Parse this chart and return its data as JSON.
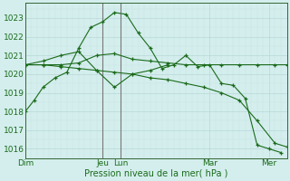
{
  "xlabel": "Pression niveau de la mer( hPa )",
  "bg_color": "#d4eeed",
  "grid_major_color": "#b8d8d8",
  "grid_minor_color": "#c8e4e4",
  "line_color": "#1a6b1a",
  "vline_color": "#777777",
  "ylim": [
    1015.5,
    1023.8
  ],
  "yticks": [
    1016,
    1017,
    1018,
    1019,
    1020,
    1021,
    1022,
    1023
  ],
  "xlim": [
    0,
    44
  ],
  "xtick_positions": [
    0,
    13,
    16,
    31,
    41
  ],
  "xtick_labels": [
    "Dim",
    "Jeu",
    "Lun",
    "Mar",
    "Mer"
  ],
  "vlines": [
    13,
    16
  ],
  "series1_x": [
    0,
    1.5,
    3,
    5,
    7,
    9,
    11,
    13,
    15,
    17,
    19,
    21,
    23,
    25,
    27,
    29,
    31,
    33,
    35,
    37,
    39,
    41,
    43
  ],
  "series1_y": [
    1018.0,
    1018.6,
    1019.3,
    1019.8,
    1020.1,
    1021.4,
    1022.5,
    1022.8,
    1023.3,
    1023.2,
    1022.2,
    1021.4,
    1020.3,
    1020.5,
    1021.0,
    1020.4,
    1020.5,
    1019.5,
    1019.4,
    1018.7,
    1016.2,
    1016.0,
    1015.8
  ],
  "series2_x": [
    0,
    3,
    6,
    9,
    12,
    15,
    18,
    21,
    24,
    27,
    30,
    33,
    36,
    39,
    42,
    44
  ],
  "series2_y": [
    1020.5,
    1020.5,
    1020.5,
    1020.6,
    1021.0,
    1021.1,
    1020.8,
    1020.7,
    1020.6,
    1020.5,
    1020.5,
    1020.5,
    1020.5,
    1020.5,
    1020.5,
    1020.5
  ],
  "series3_x": [
    0,
    3,
    6,
    9,
    12,
    15,
    18,
    21,
    24,
    27,
    30,
    33,
    36,
    39,
    42,
    44
  ],
  "series3_y": [
    1020.5,
    1020.5,
    1020.4,
    1020.3,
    1020.2,
    1020.1,
    1020.0,
    1019.8,
    1019.7,
    1019.5,
    1019.3,
    1019.0,
    1018.6,
    1017.5,
    1016.3,
    1016.1
  ],
  "series4_x": [
    0,
    3,
    6,
    9,
    12,
    15,
    18,
    21,
    24
  ],
  "series4_y": [
    1020.5,
    1020.7,
    1021.0,
    1021.2,
    1020.2,
    1019.3,
    1020.0,
    1020.2,
    1020.5
  ]
}
